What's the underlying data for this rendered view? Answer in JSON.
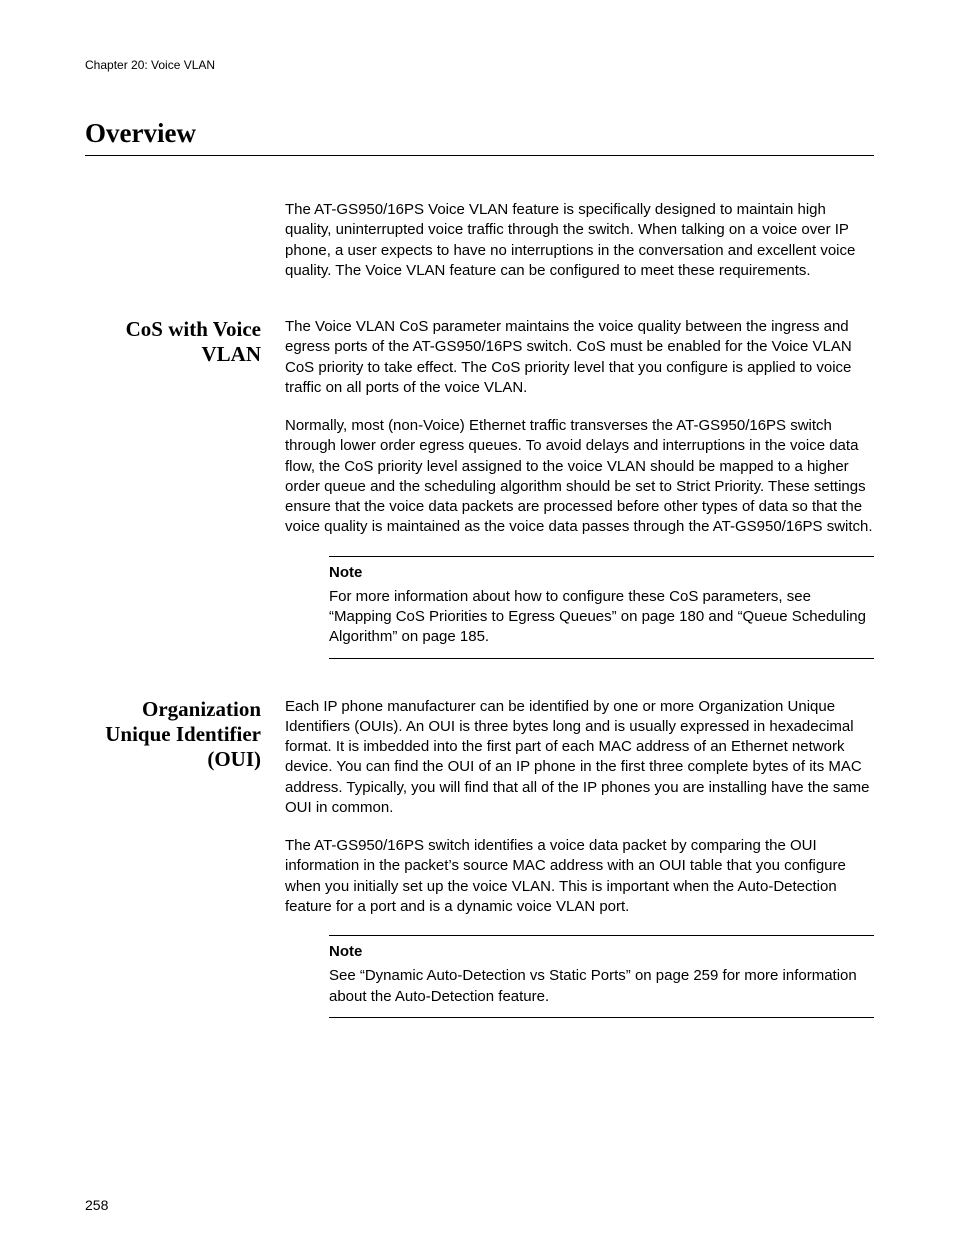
{
  "chapter_header": "Chapter 20: Voice VLAN",
  "title": "Overview",
  "intro_para": "The AT-GS950/16PS Voice VLAN feature is specifically designed to maintain high quality, uninterrupted voice traffic through the switch. When talking on a voice over IP phone, a user expects to have no interruptions in the conversation and excellent voice quality. The Voice VLAN feature can be configured to meet these requirements.",
  "section1": {
    "heading": "CoS with Voice VLAN",
    "para1": "The Voice VLAN CoS parameter maintains the voice quality between the ingress and egress ports of the AT-GS950/16PS switch. CoS must be enabled for the Voice VLAN CoS priority to take effect. The CoS priority level that you configure is applied to voice traffic on all ports of the voice VLAN.",
    "para2": "Normally, most (non-Voice) Ethernet traffic transverses the AT-GS950/16PS switch through lower order egress queues. To avoid delays and interruptions in the voice data flow, the CoS priority level assigned to the voice VLAN should be mapped to a higher order queue and the scheduling algorithm should be set to Strict Priority. These settings ensure that the voice data packets are processed before other types of data so that the voice quality is maintained as the voice data passes through the AT-GS950/16PS switch.",
    "note_label": "Note",
    "note_text": "For more information about how to configure these CoS parameters, see “Mapping CoS Priorities to Egress Queues” on page 180 and “Queue Scheduling Algorithm” on page 185."
  },
  "section2": {
    "heading": "Organization Unique Identifier (OUI)",
    "para1": "Each IP phone manufacturer can be identified by one or more Organization Unique Identifiers (OUIs). An OUI is three bytes long and is usually expressed in hexadecimal format. It is imbedded into the first part of each MAC address of an Ethernet network device. You can find the OUI of an IP phone in the first three complete bytes of its MAC address. Typically, you will find that all of the IP phones you are installing have the same OUI in common.",
    "para2": "The AT-GS950/16PS switch identifies a voice data packet by comparing the OUI information in the packet’s source MAC address with an OUI table that you configure when you initially set up the voice VLAN. This is important when the Auto-Detection feature for a port and is a dynamic voice VLAN port.",
    "note_label": "Note",
    "note_text": "See “Dynamic Auto-Detection vs Static Ports” on page 259 for more information about the Auto-Detection feature."
  },
  "page_number": "258"
}
